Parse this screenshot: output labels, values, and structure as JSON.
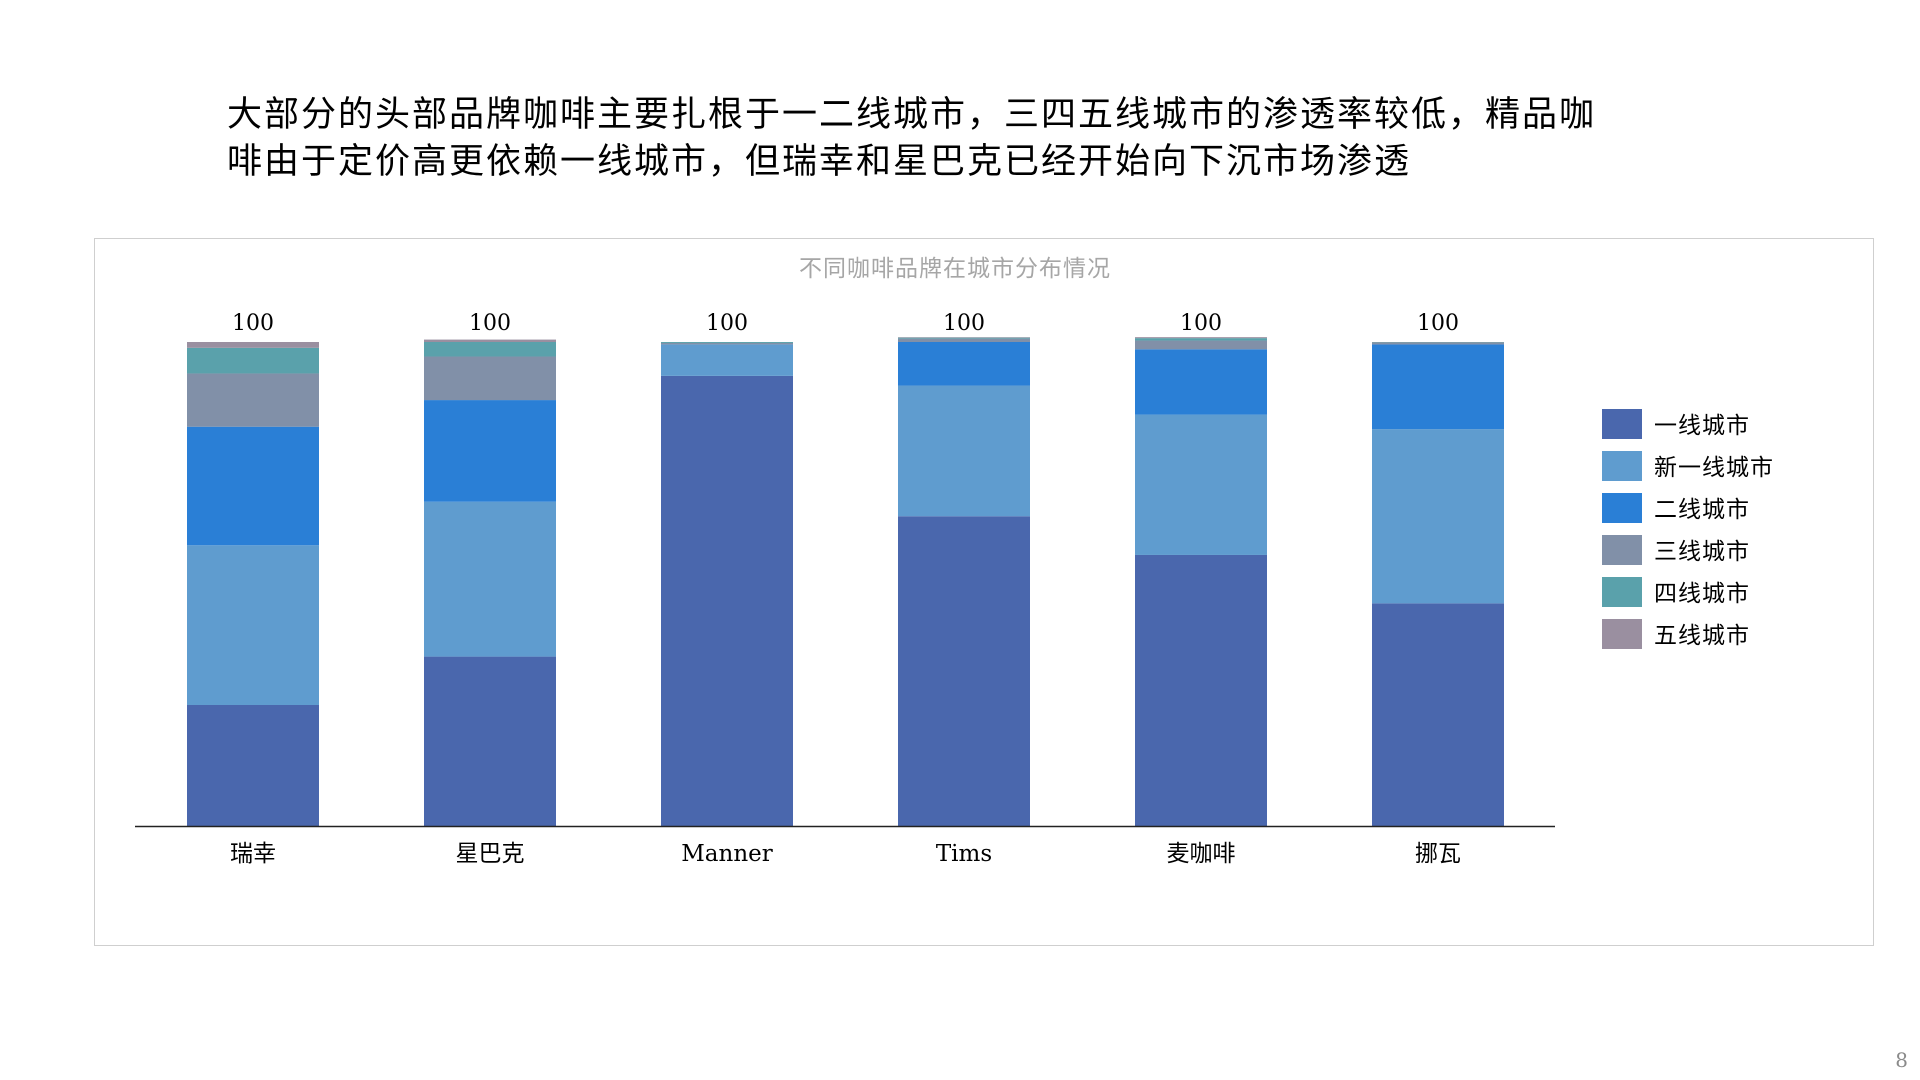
{
  "headline": {
    "line1": "大部分的头部品牌咖啡主要扎根于一二线城市，三四五线城市的渗透率较低，精品咖",
    "line2": "啡由于定价高更依赖一线城市，但瑞幸和星巴克已经开始向下沉市场渗透"
  },
  "page_number": "8",
  "chart_data": {
    "type": "bar",
    "stacked": true,
    "title": "不同咖啡品牌在城市分布情况",
    "categories": [
      "瑞幸",
      "星巴克",
      "Manner",
      "Tims",
      "麦咖啡",
      "挪瓦"
    ],
    "totals": [
      "100",
      "100",
      "100",
      "100",
      "100",
      "100"
    ],
    "ylim": [
      0,
      100
    ],
    "legend_position": "right",
    "series": [
      {
        "name": "一线城市",
        "color": "#4a67ad",
        "values": [
          25,
          35,
          93,
          64,
          56,
          46
        ]
      },
      {
        "name": "新一线城市",
        "color": "#5f9ccf",
        "values": [
          33,
          32,
          6.5,
          27,
          29,
          36
        ]
      },
      {
        "name": "二线城市",
        "color": "#2a7fd6",
        "values": [
          24.5,
          21,
          0,
          9,
          13.5,
          17.5
        ]
      },
      {
        "name": "三线城市",
        "color": "#8190a8",
        "values": [
          11,
          9,
          0.3,
          0.7,
          1.8,
          0.3
        ]
      },
      {
        "name": "四线城市",
        "color": "#5aa1ab",
        "values": [
          5.3,
          3,
          0.2,
          0.2,
          0.5,
          0.1
        ]
      },
      {
        "name": "五线城市",
        "color": "#9a8fa0",
        "values": [
          1.2,
          0.5,
          0,
          0.1,
          0.2,
          0.1
        ]
      }
    ]
  }
}
